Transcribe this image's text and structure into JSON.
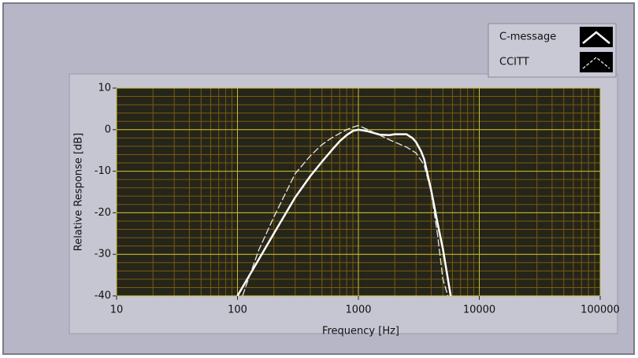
{
  "chart_data": {
    "type": "line",
    "x_label": "Frequency [Hz]",
    "y_label": "Relative Response [dB]",
    "log_x": true,
    "grid": true,
    "xlim": [
      10,
      100000
    ],
    "xticks": [
      10,
      100,
      1000,
      10000,
      100000
    ],
    "ylim": [
      -40,
      10
    ],
    "yticks": [
      10,
      0,
      -10,
      -20,
      -30,
      -40
    ],
    "legend": "top-right",
    "series": [
      {
        "name": "C-message",
        "color": "#ffffff",
        "x": [
          100,
          200,
          300,
          400,
          500,
          600,
          700,
          800,
          900,
          1000,
          1200,
          1500,
          1800,
          2000,
          2500,
          2800,
          3000,
          3300,
          3500,
          4000,
          4500,
          5000,
          5800
        ],
        "values": [
          -40,
          -25,
          -16.3,
          -11.2,
          -7.7,
          -5,
          -2.8,
          -1.3,
          -0.3,
          0,
          -0.4,
          -1.2,
          -1.3,
          -1.1,
          -1.1,
          -2,
          -3,
          -5.2,
          -7.1,
          -14.6,
          -22.3,
          -28.7,
          -40
        ]
      },
      {
        "name": "CCITT",
        "color": "#e8e8e8",
        "x": [
          110,
          150,
          200,
          300,
          400,
          500,
          600,
          700,
          800,
          900,
          1000,
          1200,
          1400,
          1600,
          1800,
          2000,
          2500,
          3000,
          3500,
          4000,
          4500,
          5000,
          5500
        ],
        "values": [
          -40,
          -29,
          -21,
          -10.6,
          -6.3,
          -3.6,
          -2,
          -0.9,
          0,
          0.6,
          1,
          0,
          -0.9,
          -1.7,
          -2.4,
          -3,
          -4.2,
          -5.6,
          -8.5,
          -15,
          -25,
          -36,
          -40
        ]
      }
    ]
  }
}
